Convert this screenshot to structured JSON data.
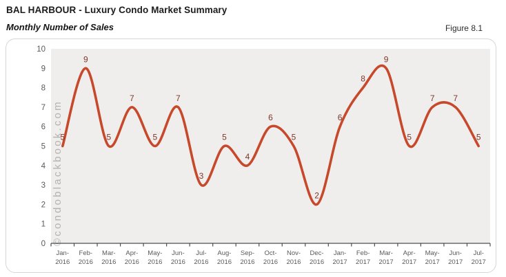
{
  "header": {
    "title": "BAL HARBOUR - Luxury Condo Market Summary",
    "subtitle": "Monthly Number of Sales",
    "figure_label": "Figure 8.1"
  },
  "watermark": "©condoblackbook.com",
  "chart_data": {
    "type": "line",
    "title": "BAL HARBOUR - Luxury Condo Market Summary",
    "subtitle": "Monthly Number of Sales",
    "categories": [
      "Jan-2016",
      "Feb-2016",
      "Mar-2016",
      "Apr-2016",
      "May-2016",
      "Jun-2016",
      "Jul-2016",
      "Aug-2016",
      "Sep-2016",
      "Oct-2016",
      "Nov-2016",
      "Dec-2016",
      "Jan-2017",
      "Feb-2017",
      "Mar-2017",
      "Apr-2017",
      "May-2017",
      "Jun-2017",
      "Jul-2017"
    ],
    "values": [
      5,
      9,
      5,
      7,
      5,
      7,
      3,
      5,
      4,
      6,
      5,
      2,
      6,
      8,
      9,
      5,
      7,
      7,
      5
    ],
    "xlabel": "",
    "ylabel": "",
    "ylim": [
      0,
      10
    ],
    "ytick_step": 1,
    "grid": false,
    "legend": "none",
    "smooth": true,
    "data_labels": "above",
    "colors": {
      "line": "#c7492b",
      "data_label": "#7d372d",
      "plot_background": "#f0eeec",
      "axis_text": "#595959",
      "axis_line": "#4d4d4d",
      "watermark": "#b5b2ae",
      "panel_border": "#d6d6d6"
    }
  }
}
